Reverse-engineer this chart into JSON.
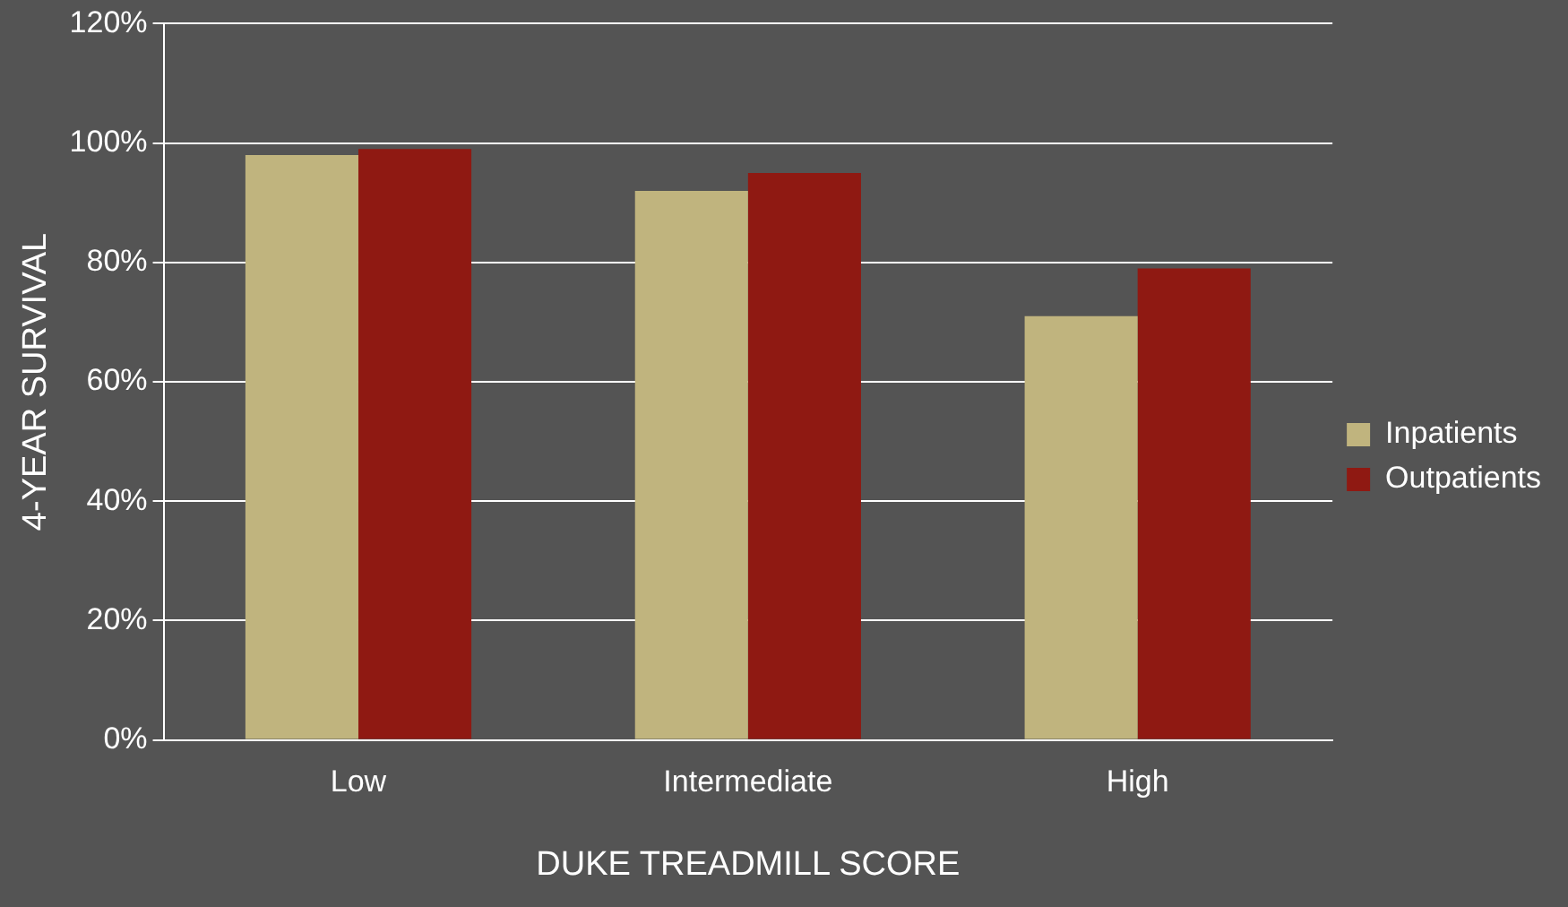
{
  "chart_data": {
    "type": "bar",
    "xlabel": "DUKE TREADMILL SCORE",
    "ylabel": "4-YEAR SURVIVAL",
    "categories": [
      "Low",
      "Intermediate",
      "High"
    ],
    "series": [
      {
        "name": "Inpatients",
        "color": "#c0b47e",
        "values": [
          98,
          92,
          71
        ]
      },
      {
        "name": "Outpatients",
        "color": "#8f1912",
        "values": [
          99,
          95,
          79
        ]
      }
    ],
    "ylim": [
      0,
      120
    ],
    "yticks": [
      {
        "value": 0,
        "label": "0%"
      },
      {
        "value": 20,
        "label": "20%"
      },
      {
        "value": 40,
        "label": "40%"
      },
      {
        "value": 60,
        "label": "60%"
      },
      {
        "value": 80,
        "label": "80%"
      },
      {
        "value": 100,
        "label": "100%"
      },
      {
        "value": 120,
        "label": "120%"
      }
    ],
    "grid": "y",
    "legend": "right"
  }
}
